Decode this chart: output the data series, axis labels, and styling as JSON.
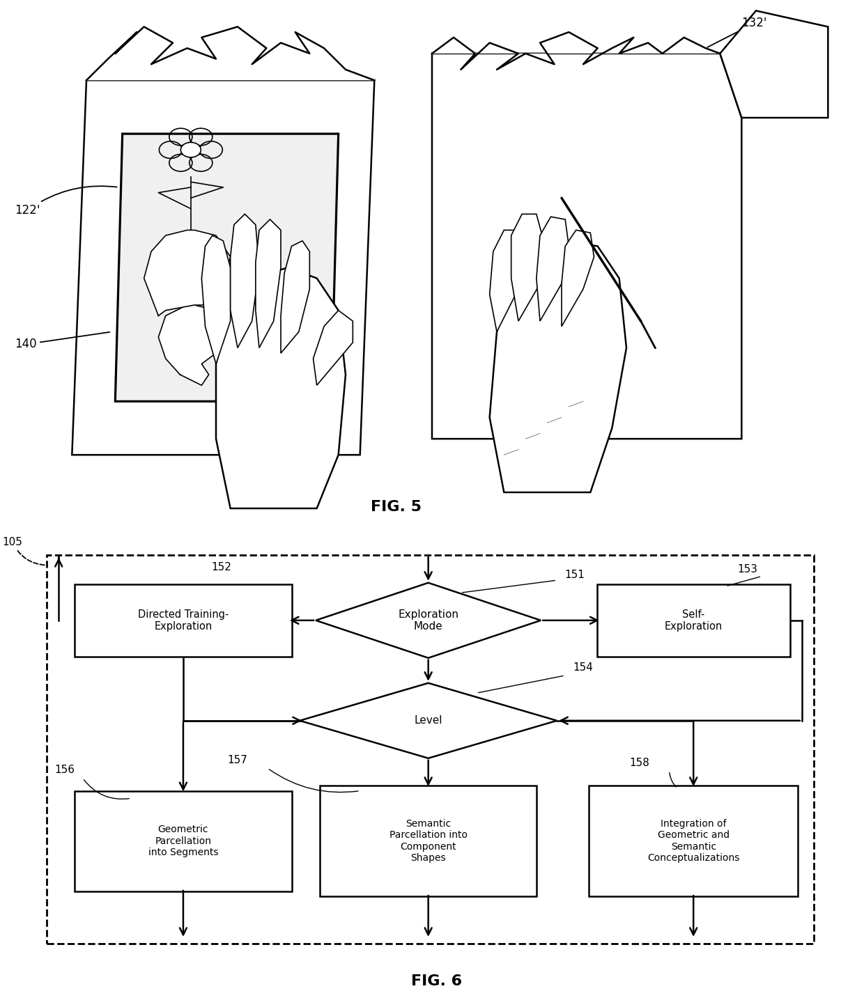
{
  "fig_title_5": "FIG. 5",
  "fig_title_6": "FIG. 6",
  "bg_color": "#ffffff",
  "label_105": "105",
  "label_151": "151",
  "label_152": "152",
  "label_153": "153",
  "label_154": "154",
  "label_156": "156",
  "label_157": "157",
  "label_158": "158",
  "label_122": "122'",
  "label_132": "132'",
  "label_140": "140",
  "box_exploration_mode": "Exploration\nMode",
  "box_directed": "Directed Training-\nExploration",
  "box_self": "Self-\nExploration",
  "box_level": "Level",
  "box_geometric": "Geometric\nParcellation\ninto Segments",
  "box_semantic": "Semantic\nParcellation into\nComponent\nShapes",
  "box_integration": "Integration of\nGeometric and\nSemantic\nConceptualizations",
  "text_color": "#000000",
  "line_color": "#000000",
  "font_size_label": 11,
  "font_size_box": 11,
  "font_size_fig": 16
}
